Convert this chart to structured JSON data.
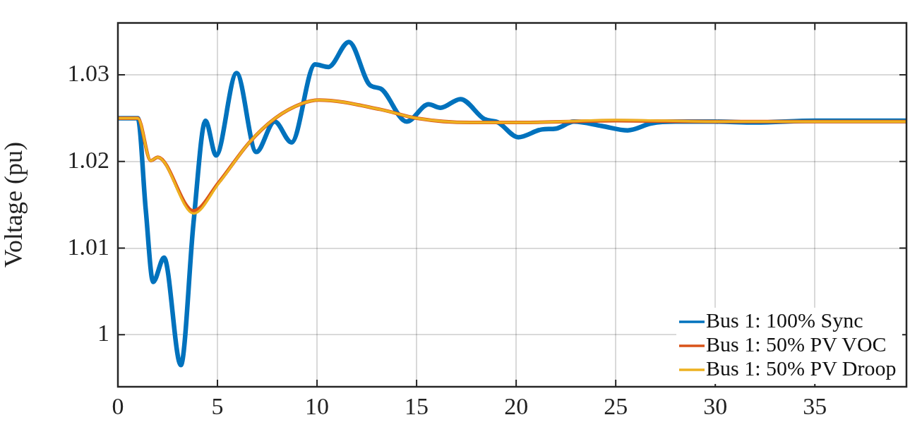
{
  "chart_data": {
    "type": "line",
    "ylabel": "Voltage (pu)",
    "xlim": [
      0,
      39.6
    ],
    "xticks": [
      0,
      5,
      10,
      15,
      20,
      25,
      30,
      35
    ],
    "ylim": [
      0.994,
      1.036
    ],
    "yticks": [
      1,
      1.01,
      1.02,
      1.03
    ],
    "grid": true,
    "legend": "bottom right",
    "line_style": "solid",
    "marker": "none",
    "series": [
      {
        "name": "Bus 1: 100% Sync",
        "color": "#0072bd",
        "x": [
          0,
          1,
          1.4,
          1.77,
          2.32,
          3.16,
          3.8,
          4.4,
          4.93,
          5.96,
          6.95,
          7.87,
          8.72,
          9.9,
          10.57,
          11.6,
          12.66,
          13.2,
          14.5,
          15.6,
          16.2,
          17.2,
          18.4,
          19.1,
          20.1,
          21.3,
          22,
          22.9,
          24.3,
          25.6,
          26.8,
          28,
          30,
          32,
          35,
          39.6
        ],
        "values": [
          1.025,
          1.025,
          1.0144,
          1.0061,
          1.0089,
          0.9965,
          1.013,
          1.0247,
          1.0207,
          1.0302,
          1.0211,
          1.0246,
          1.0222,
          1.0312,
          1.0309,
          1.0338,
          1.0288,
          1.0284,
          1.0246,
          1.0266,
          1.0262,
          1.0272,
          1.0249,
          1.0245,
          1.0228,
          1.0237,
          1.0238,
          1.0246,
          1.0241,
          1.0236,
          1.0244,
          1.0246,
          1.0246,
          1.0245,
          1.0247,
          1.0247
        ]
      },
      {
        "name": "Bus 1: 50% PV VOC",
        "color": "#d95319",
        "x": [
          0,
          1,
          1.65,
          2,
          3.8,
          5.07,
          6.6,
          7.9,
          9.25,
          10.1,
          13.2,
          15,
          17.7,
          20.3,
          25,
          30,
          39.6
        ],
        "values": [
          1.025,
          1.025,
          1.0201,
          1.0205,
          1.0143,
          1.0176,
          1.0222,
          1.025,
          1.0267,
          1.0271,
          1.026,
          1.025,
          1.0245,
          1.0245,
          1.0247,
          1.0246,
          1.0246
        ]
      },
      {
        "name": "Bus 1: 50% PV Droop",
        "color": "#edb120",
        "x": [
          0,
          1,
          1.65,
          2,
          3.8,
          5.07,
          6.6,
          7.9,
          9.25,
          10.1,
          13.2,
          15,
          17.7,
          20.3,
          25,
          30,
          39.6
        ],
        "values": [
          1.025,
          1.025,
          1.0201,
          1.0205,
          1.014,
          1.0175,
          1.0222,
          1.025,
          1.0267,
          1.0271,
          1.026,
          1.025,
          1.0245,
          1.0245,
          1.0248,
          1.0246,
          1.0246
        ]
      }
    ]
  }
}
